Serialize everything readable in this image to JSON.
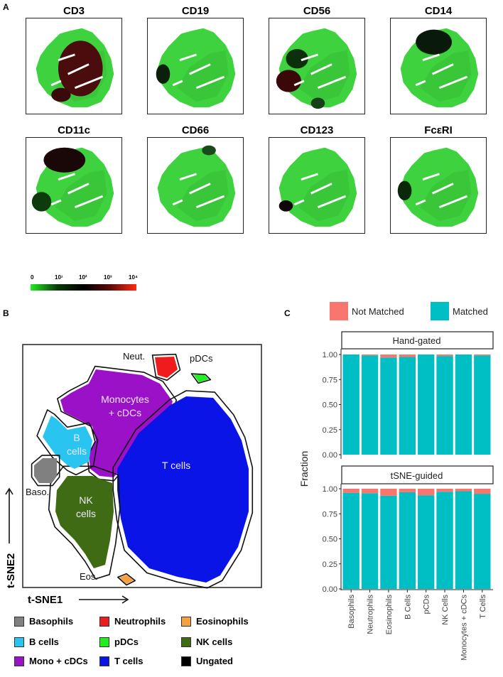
{
  "panel_labels": {
    "a": "A",
    "b": "B",
    "c": "C"
  },
  "panel_a": {
    "markers": [
      "CD3",
      "CD19",
      "CD56",
      "CD14",
      "CD11c",
      "CD66",
      "CD123",
      "FcεRI"
    ],
    "colorbar": {
      "ticks": [
        "0",
        "10¹",
        "10²",
        "10³",
        "10⁴"
      ],
      "colors": [
        "#22ee22",
        "#0a3a0a",
        "#000000",
        "#5a0a0a",
        "#ff2a10"
      ]
    }
  },
  "panel_b": {
    "axis_x": "t-SNE1",
    "axis_y": "t-SNE2",
    "cluster_labels": {
      "neut": "Neut.",
      "pdcs": "pDCs",
      "mono1": "Monocytes",
      "mono2": "+ cDCs",
      "b1": "B",
      "b2": "cells",
      "baso": "Baso.",
      "nk1": "NK",
      "nk2": "cells",
      "t": "T cells",
      "eos": "Eos."
    },
    "legend": [
      {
        "label": "Basophils",
        "color": "#808080"
      },
      {
        "label": "Neutrophils",
        "color": "#ee1c1c"
      },
      {
        "label": "Eosinophils",
        "color": "#f7a040"
      },
      {
        "label": "B cells",
        "color": "#29c5f0"
      },
      {
        "label": "pDCs",
        "color": "#22ee22"
      },
      {
        "label": "NK cells",
        "color": "#3f6b14"
      },
      {
        "label": "Mono + cDCs",
        "color": "#9b11c8"
      },
      {
        "label": "T cells",
        "color": "#0a14e6"
      },
      {
        "label": "Ungated",
        "color": "#000000"
      }
    ]
  },
  "chart_data": {
    "type": "bar",
    "stacked": true,
    "categories": [
      "Basophils",
      "Neutrophils",
      "Eosinophils",
      "B Cells",
      "pCDs",
      "NK Cells",
      "Monocytes + cDCs",
      "T Cells"
    ],
    "ylabel": "Fraction",
    "ylim": [
      0,
      1
    ],
    "yticks": [
      "0.00",
      "0.25",
      "0.50",
      "0.75",
      "1.00"
    ],
    "legend": [
      {
        "name": "Not Matched",
        "color": "#f8766d"
      },
      {
        "name": "Matched",
        "color": "#00bfc4"
      }
    ],
    "facets": [
      {
        "title": "Hand-gated",
        "series": [
          {
            "name": "Matched",
            "values": [
              1.0,
              0.99,
              0.97,
              0.975,
              1.0,
              0.985,
              1.0,
              0.99
            ]
          },
          {
            "name": "Not Matched",
            "values": [
              0.0,
              0.01,
              0.03,
              0.025,
              0.0,
              0.015,
              0.0,
              0.01
            ]
          }
        ]
      },
      {
        "title": "tSNE-guided",
        "series": [
          {
            "name": "Matched",
            "values": [
              0.96,
              0.955,
              0.93,
              0.965,
              0.935,
              0.97,
              0.975,
              0.95
            ]
          },
          {
            "name": "Not Matched",
            "values": [
              0.04,
              0.045,
              0.07,
              0.035,
              0.065,
              0.03,
              0.025,
              0.05
            ]
          }
        ]
      }
    ]
  }
}
